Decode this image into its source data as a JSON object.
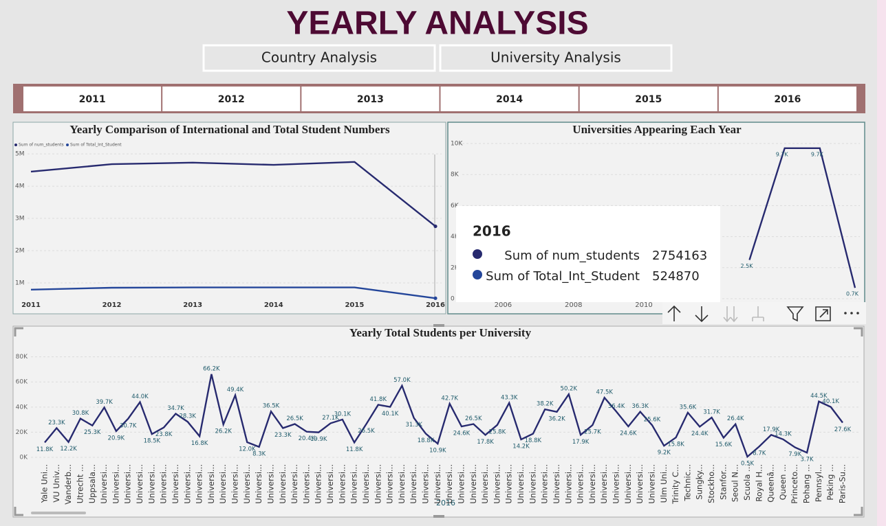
{
  "header": {
    "title": "YEARLY ANALYSIS"
  },
  "nav": [
    "Country Analysis",
    "University Analysis"
  ],
  "year_slicer": [
    "2011",
    "2012",
    "2013",
    "2014",
    "2015",
    "2016"
  ],
  "chart_data": [
    {
      "type": "line",
      "title": "Yearly Comparison of International and Total Student Numbers",
      "x": [
        2011,
        2012,
        2013,
        2014,
        2015,
        2016
      ],
      "xlim": [
        2011,
        2016
      ],
      "xticks": [
        2011,
        2012,
        2013,
        2014,
        2015,
        2016
      ],
      "ylim": [
        510000,
        5300000
      ],
      "yticks": [
        {
          "value": 1000000,
          "label": "1M"
        },
        {
          "value": 2000000,
          "label": "2M"
        },
        {
          "value": 3000000,
          "label": "3M"
        },
        {
          "value": 4000000,
          "label": "4M"
        },
        {
          "value": 5000000,
          "label": "5M"
        }
      ],
      "grid": true,
      "series": [
        {
          "name": "Sum of num_students",
          "color": "#272a6f",
          "values": [
            4450000,
            4680000,
            4730000,
            4660000,
            4750000,
            2754163
          ]
        },
        {
          "name": "Sum of Total_Int_Student",
          "color": "#24469a",
          "values": [
            790000,
            850000,
            860000,
            860000,
            860000,
            524870
          ]
        }
      ]
    },
    {
      "type": "line",
      "title": "Universities Appearing Each Year",
      "x": [
        2013,
        2014,
        2015,
        2016
      ],
      "xlim": [
        2004.8,
        2016
      ],
      "xticks": [
        2006,
        2008,
        2010,
        2012,
        2014,
        2016
      ],
      "ylim": [
        0,
        10000
      ],
      "yticks": [
        0,
        {
          "value": 2000,
          "label": "2K"
        },
        {
          "value": 4000,
          "label": "4K"
        },
        {
          "value": 6000,
          "label": "6K"
        },
        {
          "value": 8000,
          "label": "8K"
        },
        {
          "value": 10000,
          "label": "10K"
        }
      ],
      "grid": true,
      "series": [
        {
          "name": "Universities",
          "color": "#272a6f",
          "values": [
            2500,
            9700,
            9700,
            700
          ],
          "value_labels": [
            "2.5K",
            "9.7K",
            "9.7K",
            "0.7K"
          ]
        }
      ]
    },
    {
      "type": "line",
      "title": "Yearly Total Students per University",
      "x_label": "2016",
      "color": "#272a6f",
      "categories": [
        "Yale Uni...",
        "VU Univ...",
        "Vanderb...",
        "Utrecht ...",
        "Uppsala...",
        "Universi...",
        "Universi...",
        "Universi...",
        "Universi...",
        "Universi...",
        "Universi...",
        "Universi...",
        "Universi...",
        "Universi...",
        "Universi...",
        "Universi...",
        "Universi...",
        "Universi...",
        "Universi...",
        "Universi...",
        "Universi...",
        "Universi...",
        "Universi...",
        "Universi...",
        "Universi...",
        "Universi...",
        "Universi...",
        "Universi...",
        "Universi...",
        "Universi...",
        "Universi...",
        "Universi...",
        "Universi...",
        "Universi...",
        "Universi...",
        "Universi...",
        "Universi...",
        "Universi...",
        "Universi...",
        "Universi...",
        "Universi...",
        "Universi...",
        "Universi...",
        "Universi...",
        "Universi...",
        "Universi...",
        "Universi...",
        "Universi...",
        "Universi...",
        "Universi...",
        "Universi...",
        "Universi...",
        "Ulm Uni...",
        "Trinity C...",
        "Technic...",
        "Sungky...",
        "Stockho...",
        "Stanfor...",
        "Seoul N...",
        "Scuola ...",
        "Royal H...",
        "Queenâ...",
        "Queen ...",
        "Princeto...",
        "Pohang ...",
        "Pennsyl...",
        "Peking ...",
        "Paris-Su..."
      ],
      "values": [
        11800,
        23300,
        12200,
        30800,
        25300,
        39700,
        20900,
        30700,
        44000,
        18500,
        23800,
        34700,
        28300,
        16800,
        66200,
        26200,
        49400,
        12000,
        8300,
        36500,
        23300,
        26500,
        20400,
        19900,
        27100,
        30100,
        11800,
        26500,
        41800,
        40100,
        57000,
        31300,
        18800,
        10900,
        42700,
        24600,
        26500,
        17800,
        25800,
        43300,
        14200,
        18800,
        38200,
        36200,
        50200,
        17900,
        25700,
        47500,
        36400,
        24600,
        36300,
        25600,
        9200,
        15800,
        35600,
        24400,
        31700,
        15600,
        26400,
        500,
        8700,
        17900,
        14300,
        7900,
        3700,
        44500,
        40100,
        27600
      ],
      "value_labels": [
        "11.8K",
        "23.3K",
        "12.2K",
        "30.8K",
        "25.3K",
        "39.7K",
        "20.9K",
        "30.7K",
        "44.0K",
        "18.5K",
        "23.8K",
        "34.7K",
        "28.3K",
        "16.8K",
        "66.2K",
        "26.2K",
        "49.4K",
        "12.0K",
        "8.3K",
        "36.5K",
        "23.3K",
        "26.5K",
        "20.4K",
        "19.9K",
        "27.1K",
        "30.1K",
        "11.8K",
        "26.5K",
        "41.8K",
        "40.1K",
        "57.0K",
        "31.3K",
        "18.8K",
        "10.9K",
        "42.7K",
        "24.6K",
        "26.5K",
        "17.8K",
        "25.8K",
        "43.3K",
        "14.2K",
        "18.8K",
        "38.2K",
        "36.2K",
        "50.2K",
        "17.9K",
        "25.7K",
        "47.5K",
        "36.4K",
        "24.6K",
        "36.3K",
        "25.6K",
        "9.2K",
        "15.8K",
        "35.6K",
        "24.4K",
        "31.7K",
        "15.6K",
        "26.4K",
        "0.5K",
        "8.7K",
        "17.9K",
        "14.3K",
        "7.9K",
        "3.7K",
        "44.5K",
        "40.1K",
        "27.6K"
      ],
      "ylim": [
        0,
        88000
      ],
      "yticks": [
        {
          "value": 0,
          "label": "0K"
        },
        {
          "value": 20000,
          "label": "20K"
        },
        {
          "value": 40000,
          "label": "40K"
        },
        {
          "value": 60000,
          "label": "60K"
        },
        {
          "value": 80000,
          "label": "80K"
        }
      ],
      "grid": true
    }
  ]
}
